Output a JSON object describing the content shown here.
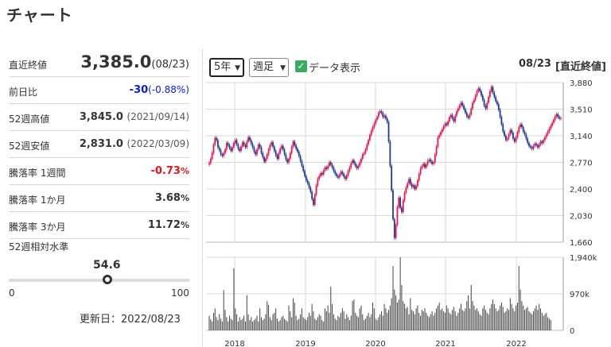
{
  "page_title": "チャート",
  "stats": {
    "close": {
      "label": "直近終値",
      "value": "3,385.0",
      "sub": "(08/23)"
    },
    "change": {
      "label": "前日比",
      "value": "-30",
      "sub": "(-0.88%)"
    },
    "high52": {
      "label": "52週高値",
      "value": "3,845.0",
      "sub": "(2021/09/14)"
    },
    "low52": {
      "label": "52週安値",
      "value": "2,831.0",
      "sub": "(2022/03/09)"
    },
    "w1": {
      "label": "騰落率 1週間",
      "value": "-0.73",
      "unit": "%"
    },
    "m1": {
      "label": "騰落率 1か月",
      "value": "3.68",
      "unit": "%"
    },
    "m3": {
      "label": "騰落率 3か月",
      "value": "11.72",
      "unit": "%"
    }
  },
  "relative_level": {
    "label": "52週相対水準",
    "value": "54.6",
    "level": 54.6,
    "min": "0",
    "max": "100"
  },
  "updated": "更新日：2022/08/23",
  "chart_controls": {
    "period": "5年",
    "type": "週足",
    "data_display_label": "データ表示",
    "data_display_checked": true,
    "date": "08/23",
    "mode": "[直近終値]"
  },
  "colors": {
    "up": "#e8144b",
    "down": "#1f3a93",
    "volume": "#444444",
    "grid": "#d9d9d9"
  },
  "icons": {
    "chevron": "chevron-down-icon",
    "check": "check-icon"
  },
  "chart_data": [
    {
      "type": "candlestick",
      "title": "",
      "x_ticks": [
        "2018",
        "2019",
        "2020",
        "2021",
        "2022"
      ],
      "y_ticks": [
        "3,880",
        "3,510",
        "3,140",
        "2,770",
        "2,400",
        "2,030",
        "1,660"
      ],
      "ylim": [
        1660,
        3880
      ],
      "grid": true,
      "weekly_close": [
        2760,
        2820,
        2900,
        3020,
        3110,
        3080,
        2980,
        2940,
        2880,
        2860,
        2900,
        2950,
        3040,
        3010,
        2970,
        2930,
        2980,
        3040,
        3080,
        3020,
        2960,
        2930,
        2990,
        3050,
        3010,
        2980,
        3060,
        3120,
        3080,
        3030,
        2980,
        2920,
        2880,
        2950,
        3020,
        2980,
        2900,
        2840,
        2780,
        2820,
        2880,
        2950,
        3010,
        3050,
        2990,
        2930,
        2870,
        2820,
        2900,
        2960,
        3000,
        2950,
        2880,
        2810,
        2770,
        2820,
        2900,
        2990,
        3060,
        3010,
        2960,
        2920,
        2860,
        2790,
        2720,
        2650,
        2580,
        2520,
        2480,
        2420,
        2360,
        2260,
        2180,
        2320,
        2450,
        2540,
        2580,
        2620,
        2600,
        2660,
        2700,
        2680,
        2720,
        2770,
        2740,
        2700,
        2650,
        2610,
        2580,
        2560,
        2600,
        2640,
        2610,
        2570,
        2540,
        2590,
        2650,
        2700,
        2760,
        2800,
        2760,
        2720,
        2690,
        2720,
        2770,
        2820,
        2880,
        2900,
        2950,
        3020,
        3080,
        3150,
        3210,
        3260,
        3310,
        3360,
        3400,
        3460,
        3480,
        3460,
        3400,
        3420,
        3380,
        3330,
        3060,
        2720,
        2380,
        1980,
        1720,
        1900,
        2150,
        2280,
        2140,
        2080,
        2240,
        2350,
        2420,
        2480,
        2540,
        2470,
        2430,
        2450,
        2400,
        2440,
        2520,
        2610,
        2690,
        2720,
        2750,
        2700,
        2740,
        2790,
        2810,
        2780,
        2750,
        2770,
        2880,
        2990,
        3120,
        3150,
        3190,
        3230,
        3270,
        3310,
        3290,
        3340,
        3400,
        3430,
        3380,
        3340,
        3420,
        3480,
        3520,
        3560,
        3600,
        3560,
        3510,
        3460,
        3410,
        3390,
        3440,
        3520,
        3600,
        3640,
        3700,
        3760,
        3800,
        3760,
        3700,
        3640,
        3560,
        3520,
        3600,
        3680,
        3760,
        3820,
        3740,
        3680,
        3620,
        3580,
        3500,
        3400,
        3300,
        3200,
        3140,
        3080,
        3100,
        3160,
        3220,
        3180,
        3100,
        3060,
        3120,
        3190,
        3260,
        3300,
        3260,
        3200,
        3160,
        3100,
        3040,
        3000,
        2980,
        2960,
        3000,
        3030,
        3010,
        2980,
        3020,
        3060,
        3040,
        3080,
        3120,
        3160,
        3200,
        3240,
        3280,
        3320,
        3360,
        3410,
        3440,
        3400,
        3380,
        3385
      ],
      "weekly_volume": [
        0.2,
        0.15,
        0.12,
        0.24,
        0.3,
        0.18,
        0.14,
        0.22,
        0.16,
        0.12,
        0.55,
        0.28,
        0.18,
        0.12,
        0.2,
        0.16,
        0.14,
        0.85,
        0.3,
        0.22,
        0.12,
        0.18,
        0.14,
        0.16,
        0.2,
        0.12,
        0.48,
        0.22,
        0.14,
        0.18,
        0.12,
        0.14,
        0.16,
        0.2,
        0.12,
        0.3,
        0.18,
        0.14,
        0.16,
        0.22,
        0.4,
        0.35,
        0.18,
        0.14,
        0.22,
        0.24,
        0.3,
        0.16,
        0.12,
        0.14,
        0.18,
        0.2,
        0.16,
        0.14,
        0.12,
        0.34,
        0.26,
        0.18,
        0.44,
        0.38,
        0.2,
        0.14,
        0.16,
        0.22,
        0.3,
        0.18,
        0.16,
        0.14,
        0.18,
        0.24,
        0.2,
        0.36,
        0.26,
        0.16,
        0.14,
        0.18,
        0.22,
        0.2,
        0.14,
        0.12,
        0.3,
        0.26,
        0.34,
        0.24,
        0.6,
        0.36,
        0.22,
        0.16,
        0.14,
        0.2,
        0.18,
        0.24,
        0.3,
        0.26,
        0.16,
        0.22,
        0.18,
        0.14,
        0.2,
        0.4,
        0.42,
        0.24,
        0.2,
        0.18,
        0.3,
        0.34,
        0.22,
        0.14,
        0.16,
        0.2,
        0.24,
        0.18,
        0.22,
        0.38,
        0.3,
        0.16,
        0.14,
        0.18,
        0.22,
        0.26,
        0.2,
        0.36,
        0.3,
        0.24,
        0.28,
        0.34,
        0.44,
        0.88,
        0.56,
        0.48,
        0.38,
        0.42,
        1.0,
        0.62,
        0.4,
        0.36,
        0.3,
        0.32,
        0.22,
        0.44,
        0.28,
        0.26,
        0.22,
        0.3,
        0.34,
        0.24,
        0.2,
        0.28,
        0.26,
        0.3,
        0.24,
        0.2,
        0.18,
        0.22,
        0.26,
        0.2,
        0.24,
        0.3,
        0.34,
        0.38,
        0.28,
        0.3,
        0.26,
        0.24,
        0.34,
        0.3,
        0.24,
        0.22,
        0.28,
        0.32,
        0.26,
        0.2,
        0.24,
        0.3,
        0.36,
        0.28,
        0.26,
        0.3,
        0.4,
        0.48,
        0.3,
        0.62,
        0.4,
        0.34,
        0.28,
        0.3,
        0.26,
        0.22,
        0.2,
        0.3,
        0.34,
        0.28,
        0.24,
        0.22,
        0.3,
        0.36,
        0.42,
        0.36,
        0.3,
        0.26,
        0.28,
        0.34,
        0.38,
        0.32,
        0.24,
        0.26,
        0.3,
        0.28,
        0.44,
        0.36,
        0.3,
        0.26,
        0.34,
        0.38,
        0.88,
        0.56,
        0.4,
        0.34,
        0.28,
        0.3,
        0.32,
        0.26,
        0.24,
        0.22,
        0.26,
        0.3,
        0.34,
        0.28,
        0.36,
        0.3,
        0.24,
        0.2,
        0.22,
        0.24,
        0.18,
        0.16,
        0.14
      ]
    },
    {
      "type": "bar",
      "title": "",
      "y_ticks": [
        "1,940k",
        "970k",
        "0"
      ],
      "ylim": [
        0,
        1940
      ]
    }
  ]
}
